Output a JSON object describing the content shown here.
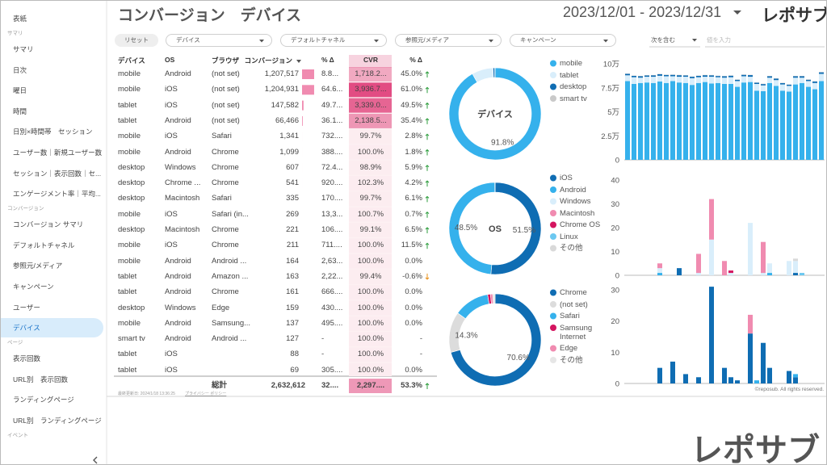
{
  "sidebar": {
    "items": [
      {
        "label": "表紙",
        "kind": "item"
      },
      {
        "label": "サマリ",
        "kind": "section"
      },
      {
        "label": "サマリ",
        "kind": "item"
      },
      {
        "label": "日次",
        "kind": "item"
      },
      {
        "label": "曜日",
        "kind": "item"
      },
      {
        "label": "時間",
        "kind": "item"
      },
      {
        "label": "日別×時間帯　セッション",
        "kind": "item"
      },
      {
        "label": "ユーザー数｜新規ユーザー数",
        "kind": "item"
      },
      {
        "label": "セッション｜表示回数｜セ...",
        "kind": "item"
      },
      {
        "label": "エンゲージメント率｜平均...",
        "kind": "item"
      },
      {
        "label": "コンバージョン",
        "kind": "section"
      },
      {
        "label": "コンバージョン サマリ",
        "kind": "item"
      },
      {
        "label": "デフォルトチャネル",
        "kind": "item"
      },
      {
        "label": "参照元/メディア",
        "kind": "item"
      },
      {
        "label": "キャンペーン",
        "kind": "item"
      },
      {
        "label": "ユーザー",
        "kind": "item"
      },
      {
        "label": "デバイス",
        "kind": "item",
        "active": true
      },
      {
        "label": "ページ",
        "kind": "section"
      },
      {
        "label": "表示回数",
        "kind": "item"
      },
      {
        "label": "URL別　表示回数",
        "kind": "item"
      },
      {
        "label": "ランディングページ",
        "kind": "item"
      },
      {
        "label": "URL別　ランディングページ",
        "kind": "item"
      },
      {
        "label": "イベント",
        "kind": "section"
      }
    ]
  },
  "header": {
    "title": "コンバージョン　デバイス",
    "date_range": "2023/12/01 - 2023/12/31",
    "logo": "レポサブ"
  },
  "filters": {
    "reset": "リセット",
    "dropdowns": [
      "デバイス",
      "デフォルトチャネル",
      "参照元/メディア",
      "キャンペーン"
    ],
    "match": "次を含む",
    "input_placeholder": "値を入力"
  },
  "table": {
    "columns": [
      "デバイス",
      "OS",
      "ブラウザ",
      "コンバージョン",
      "% Δ",
      "CVR",
      "% Δ"
    ],
    "rows": [
      {
        "cells": [
          "mobile",
          "Android",
          "(not set)",
          "1,207,517",
          "8.8...",
          "1,718.2...",
          "45.0%"
        ],
        "trend": "up"
      },
      {
        "cells": [
          "mobile",
          "iOS",
          "(not set)",
          "1,204,931",
          "64.6...",
          "3,936.7...",
          "61.0%"
        ],
        "trend": "up"
      },
      {
        "cells": [
          "tablet",
          "iOS",
          "(not set)",
          "147,582",
          "49.7...",
          "3,339.0...",
          "49.5%"
        ],
        "trend": "up"
      },
      {
        "cells": [
          "tablet",
          "Android",
          "(not set)",
          "66,466",
          "36.1...",
          "2,138.5...",
          "35.4%"
        ],
        "trend": "up"
      },
      {
        "cells": [
          "mobile",
          "iOS",
          "Safari",
          "1,341",
          "732....",
          "99.7%",
          "2.8%"
        ],
        "trend": "up"
      },
      {
        "cells": [
          "mobile",
          "Android",
          "Chrome",
          "1,099",
          "388....",
          "100.0%",
          "1.8%"
        ],
        "trend": "up"
      },
      {
        "cells": [
          "desktop",
          "Windows",
          "Chrome",
          "607",
          "72.4...",
          "98.9%",
          "5.9%"
        ],
        "trend": "up"
      },
      {
        "cells": [
          "desktop",
          "Chrome ...",
          "Chrome",
          "541",
          "920....",
          "102.3%",
          "4.2%"
        ],
        "trend": "up"
      },
      {
        "cells": [
          "desktop",
          "Macintosh",
          "Safari",
          "335",
          "170....",
          "99.7%",
          "6.1%"
        ],
        "trend": "up"
      },
      {
        "cells": [
          "mobile",
          "iOS",
          "Safari (in...",
          "269",
          "13,3...",
          "100.7%",
          "0.7%"
        ],
        "trend": "up"
      },
      {
        "cells": [
          "desktop",
          "Macintosh",
          "Chrome",
          "221",
          "106....",
          "99.1%",
          "6.5%"
        ],
        "trend": "up"
      },
      {
        "cells": [
          "mobile",
          "iOS",
          "Chrome",
          "211",
          "711....",
          "100.0%",
          "11.5%"
        ],
        "trend": "up"
      },
      {
        "cells": [
          "mobile",
          "Android",
          "Android ...",
          "164",
          "2,63...",
          "100.0%",
          "0.0%"
        ],
        "trend": null
      },
      {
        "cells": [
          "tablet",
          "Android",
          "Amazon ...",
          "163",
          "2,22...",
          "99.4%",
          "-0.6%"
        ],
        "trend": "down"
      },
      {
        "cells": [
          "tablet",
          "Android",
          "Chrome",
          "161",
          "666....",
          "100.0%",
          "0.0%"
        ],
        "trend": null
      },
      {
        "cells": [
          "desktop",
          "Windows",
          "Edge",
          "159",
          "430....",
          "100.0%",
          "0.0%"
        ],
        "trend": null
      },
      {
        "cells": [
          "mobile",
          "Android",
          "Samsung...",
          "137",
          "495....",
          "100.0%",
          "0.0%"
        ],
        "trend": null
      },
      {
        "cells": [
          "smart tv",
          "Android",
          "Android ...",
          "127",
          "-",
          "100.0%",
          "-"
        ],
        "trend": null
      },
      {
        "cells": [
          "tablet",
          "iOS",
          null,
          "88",
          "-",
          "100.0%",
          "-"
        ],
        "trend": null
      },
      {
        "cells": [
          "tablet",
          "iOS",
          null,
          "69",
          "305....",
          "100.0%",
          "0.0%"
        ],
        "trend": null
      }
    ],
    "total": {
      "cells": [
        null,
        null,
        "総計",
        "2,632,612",
        "32....",
        "2,297....",
        "53.3%"
      ],
      "trend": "up"
    }
  },
  "footer": {
    "updated": "最終更新日: 2024/1/18 13:36:25",
    "privacy": "プライバシー ポリシー",
    "copyright": "©reposub. All rights reserved.",
    "watermark": "レポサブ"
  },
  "chart_data": [
    {
      "type": "pie",
      "center_label": "デバイス",
      "categories": [
        "mobile",
        "tablet",
        "desktop",
        "smart tv"
      ],
      "values": [
        91.8,
        7.5,
        0.6,
        0.1
      ],
      "value_labels": [
        "91.8%",
        null,
        null,
        null
      ],
      "colors": [
        "#35b1ec",
        "#d9eefb",
        "#0f6db3",
        "#c9c9c9"
      ]
    },
    {
      "type": "pie",
      "center_label": "OS",
      "categories": [
        "iOS",
        "Android",
        "Windows",
        "Macintosh",
        "Chrome OS",
        "Linux",
        "その他"
      ],
      "values": [
        51.5,
        48.5,
        0.03,
        0.02,
        0.02,
        0.005,
        0.005
      ],
      "value_labels": [
        "51.5%",
        "48.5%",
        null,
        null,
        null,
        null,
        null
      ],
      "colors": [
        "#0f6db3",
        "#35b1ec",
        "#d9eefb",
        "#f08bb0",
        "#d4145f",
        "#6cc8f0",
        "#d9d9d9"
      ]
    },
    {
      "type": "pie",
      "categories": [
        "Chrome",
        "(not set)",
        "Safari",
        "Samsung Internet",
        "Edge",
        "その他"
      ],
      "values": [
        70.6,
        14.3,
        12.5,
        1.0,
        0.8,
        0.8
      ],
      "value_labels": [
        "70.6%",
        "14.3%",
        null,
        null,
        null,
        null
      ],
      "colors": [
        "#0f6db3",
        "#dcdcdc",
        "#35b1ec",
        "#d4145f",
        "#f08bb0",
        "#e6e6e6"
      ]
    },
    {
      "type": "bar",
      "stacked": true,
      "ylim": [
        0,
        100000
      ],
      "yticks": [
        0,
        {
          "value": 25000,
          "label": "2.5万"
        },
        {
          "value": 50000,
          "label": "5万"
        },
        {
          "value": 75000,
          "label": "7.5万"
        },
        {
          "value": 100000,
          "label": "10万"
        }
      ],
      "series": [
        {
          "color": "#35b1ec",
          "values": [
            82000,
            79000,
            80000,
            80500,
            80000,
            81500,
            80000,
            82000,
            80500,
            80000,
            78000,
            80000,
            81000,
            79500,
            80000,
            79000,
            79000,
            76000,
            80500,
            81000,
            72000,
            71500,
            80000,
            77000,
            72000,
            71000,
            78500,
            80000,
            76000,
            73500,
            82000
          ]
        },
        {
          "color": "#d9eefb",
          "values": [
            6000,
            7000,
            5500,
            6000,
            6500,
            6000,
            7000,
            5000,
            6000,
            6500,
            7000,
            6000,
            5500,
            7000,
            6000,
            6500,
            7000,
            6000,
            6500,
            5500,
            7000,
            6000,
            5500,
            6000,
            6500,
            6000,
            7000,
            5500,
            6000,
            6500,
            7500
          ]
        },
        {
          "color": "#0f6db3",
          "values": [
            1500,
            1400,
            1600,
            1300,
            1500,
            1700,
            1400,
            1500,
            1600,
            1300,
            1500,
            1400,
            1600,
            1500,
            1300,
            1500,
            1600,
            1400,
            1500,
            1700,
            1300,
            1400,
            1500,
            1600,
            1400,
            1300,
            1500,
            1600,
            1400,
            1500,
            1600
          ]
        },
        {
          "color": "#c9c9c9",
          "values": [
            300,
            250,
            300,
            350,
            300,
            250,
            300,
            300,
            350,
            300,
            250,
            300,
            300,
            350,
            300,
            250,
            300,
            300,
            350,
            300,
            250,
            300,
            300,
            350,
            300,
            250,
            300,
            300,
            350,
            300,
            300
          ]
        }
      ]
    },
    {
      "type": "bar",
      "stacked": true,
      "ylim": [
        0,
        40
      ],
      "yticks": [
        0,
        10,
        20,
        30,
        40
      ],
      "series": [
        {
          "color": "#0f6db3",
          "values": [
            0,
            0,
            0,
            0,
            0,
            0,
            0,
            0,
            3,
            0,
            0,
            0,
            0,
            0,
            0,
            0,
            0,
            0,
            0,
            0,
            0,
            0,
            0,
            0,
            0,
            0,
            1,
            0,
            0,
            0,
            0
          ]
        },
        {
          "color": "#35b1ec",
          "values": [
            0,
            0,
            0,
            0,
            0,
            1,
            0,
            0,
            0,
            0,
            0,
            0,
            0,
            0,
            0,
            0,
            0,
            0,
            0,
            0,
            0,
            0,
            1,
            0,
            0,
            0,
            0,
            0,
            0,
            0,
            0
          ]
        },
        {
          "color": "#d9eefb",
          "values": [
            0,
            0,
            0,
            0,
            0,
            2,
            0,
            0,
            0,
            0,
            0,
            1,
            0,
            15,
            0,
            0,
            1,
            0,
            0,
            22,
            0,
            1,
            4,
            0,
            0,
            6,
            5,
            0,
            0,
            0,
            0
          ]
        },
        {
          "color": "#f08bb0",
          "values": [
            0,
            0,
            0,
            0,
            0,
            2,
            0,
            0,
            0,
            0,
            0,
            8,
            0,
            17,
            0,
            6,
            0,
            0,
            0,
            0,
            0,
            13,
            0,
            0,
            0,
            0,
            0,
            0,
            0,
            0,
            0
          ]
        },
        {
          "color": "#d4145f",
          "values": [
            0,
            0,
            0,
            0,
            0,
            0,
            0,
            0,
            0,
            0,
            0,
            0,
            0,
            0,
            0,
            0,
            1,
            0,
            0,
            0,
            0,
            0,
            0,
            0,
            0,
            0,
            0,
            0,
            0,
            0,
            0
          ]
        },
        {
          "color": "#6cc8f0",
          "values": [
            0,
            0,
            0,
            0,
            0,
            0,
            0,
            0,
            0,
            0,
            0,
            0,
            0,
            0,
            0,
            0,
            0,
            0,
            0,
            0,
            0,
            0,
            0,
            0,
            0,
            0,
            0,
            1,
            0,
            0,
            0
          ]
        },
        {
          "color": "#d9d9d9",
          "values": [
            0,
            0,
            0,
            0,
            0,
            0,
            0,
            0,
            0,
            0,
            0,
            0,
            0,
            0,
            0,
            0,
            0,
            0,
            0,
            0,
            0,
            0,
            0,
            0,
            0,
            0,
            1,
            0,
            0,
            0,
            0
          ]
        }
      ]
    },
    {
      "type": "bar",
      "stacked": true,
      "ylim": [
        0,
        30
      ],
      "yticks": [
        0,
        10,
        20,
        30
      ],
      "series": [
        {
          "color": "#0f6db3",
          "values": [
            0,
            0,
            0,
            0,
            0,
            5,
            0,
            7,
            0,
            3,
            0,
            2,
            0,
            31,
            0,
            5,
            2,
            1,
            0,
            16,
            0,
            13,
            5,
            0,
            0,
            4,
            2,
            0,
            0,
            0,
            0
          ]
        },
        {
          "color": "#dcdcdc",
          "values": [
            0,
            0,
            0,
            0,
            0,
            0,
            0,
            0,
            0,
            0,
            0,
            0,
            0,
            0,
            0,
            0,
            0,
            0,
            0,
            0,
            0,
            0,
            0,
            0,
            0,
            0,
            0,
            0,
            0,
            0,
            0
          ]
        },
        {
          "color": "#35b1ec",
          "values": [
            0,
            0,
            0,
            0,
            0,
            0,
            0,
            0,
            0,
            0,
            0,
            0,
            0,
            0,
            0,
            0,
            0,
            0,
            0,
            0,
            1,
            0,
            0,
            0,
            0,
            0,
            1,
            0,
            0,
            0,
            0
          ]
        },
        {
          "color": "#d4145f",
          "values": [
            0,
            0,
            0,
            0,
            0,
            0,
            0,
            0,
            0,
            0,
            0,
            0,
            0,
            0,
            0,
            0,
            0,
            0,
            0,
            0,
            0,
            0,
            0,
            0,
            0,
            0,
            0,
            0,
            0,
            0,
            0
          ]
        },
        {
          "color": "#f08bb0",
          "values": [
            0,
            0,
            0,
            0,
            0,
            0,
            0,
            0,
            0,
            0,
            0,
            0,
            0,
            0,
            0,
            0,
            0,
            0,
            0,
            6,
            0,
            0,
            0,
            0,
            0,
            0,
            0,
            0,
            0,
            0,
            0
          ]
        },
        {
          "color": "#e6e6e6",
          "values": [
            0,
            0,
            0,
            0,
            0,
            0,
            0,
            0,
            0,
            0,
            0,
            0,
            0,
            0,
            0,
            0,
            0,
            0,
            0,
            0,
            0,
            0,
            0,
            0,
            0,
            0,
            0,
            0,
            0,
            0,
            0
          ]
        }
      ]
    }
  ]
}
